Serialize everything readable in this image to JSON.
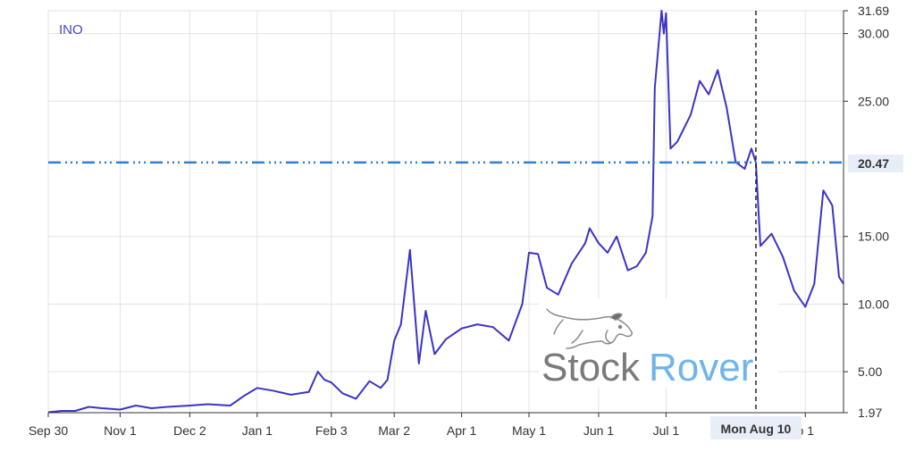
{
  "chart_data": {
    "type": "line",
    "ticker": "INO",
    "x_ticks": [
      "Sep 30",
      "Nov 1",
      "Dec 2",
      "Jan 1",
      "Feb 3",
      "Mar 2",
      "Apr 1",
      "May 1",
      "Jun 1",
      "Jul 1",
      "Sep 1"
    ],
    "x_tick_display": [
      "Sep 30",
      "Nov 1",
      "Dec 2",
      "Jan 1",
      "Feb 3",
      "Mar 2",
      "Apr 1",
      "May 1",
      "Jun 1",
      "Jul 1",
      "p 1"
    ],
    "y_ticks": [
      5.0,
      10.0,
      15.0,
      25.0,
      30.0
    ],
    "y_tick_labels": [
      "5.00",
      "10.00",
      "15.00",
      "25.00",
      "30.00"
    ],
    "y_max_label": "31.69",
    "y_min_label": "1.97",
    "ylim": [
      1.97,
      31.69
    ],
    "grid": true,
    "cursor": {
      "date_label": "Mon Aug 10",
      "value_label": "20.47",
      "value": 20.47
    },
    "series": [
      {
        "name": "INO",
        "values": [
          [
            "2019-09-30",
            2.0
          ],
          [
            "2019-10-06",
            2.1
          ],
          [
            "2019-10-12",
            2.1
          ],
          [
            "2019-10-18",
            2.4
          ],
          [
            "2019-10-24",
            2.3
          ],
          [
            "2019-11-01",
            2.2
          ],
          [
            "2019-11-08",
            2.5
          ],
          [
            "2019-11-15",
            2.3
          ],
          [
            "2019-11-22",
            2.4
          ],
          [
            "2019-12-02",
            2.5
          ],
          [
            "2019-12-10",
            2.6
          ],
          [
            "2019-12-20",
            2.5
          ],
          [
            "2019-12-26",
            3.2
          ],
          [
            "2020-01-01",
            3.8
          ],
          [
            "2020-01-08",
            3.6
          ],
          [
            "2020-01-16",
            3.3
          ],
          [
            "2020-01-24",
            3.5
          ],
          [
            "2020-01-28",
            5.0
          ],
          [
            "2020-01-31",
            4.4
          ],
          [
            "2020-02-03",
            4.2
          ],
          [
            "2020-02-08",
            3.4
          ],
          [
            "2020-02-14",
            3.0
          ],
          [
            "2020-02-20",
            4.3
          ],
          [
            "2020-02-25",
            3.8
          ],
          [
            "2020-02-28",
            4.4
          ],
          [
            "2020-03-02",
            7.3
          ],
          [
            "2020-03-05",
            8.5
          ],
          [
            "2020-03-09",
            14.0
          ],
          [
            "2020-03-13",
            5.6
          ],
          [
            "2020-03-16",
            9.5
          ],
          [
            "2020-03-20",
            6.3
          ],
          [
            "2020-03-25",
            7.4
          ],
          [
            "2020-04-01",
            8.2
          ],
          [
            "2020-04-08",
            8.5
          ],
          [
            "2020-04-15",
            8.3
          ],
          [
            "2020-04-22",
            7.3
          ],
          [
            "2020-04-28",
            10.0
          ],
          [
            "2020-05-01",
            13.8
          ],
          [
            "2020-05-05",
            13.7
          ],
          [
            "2020-05-09",
            11.2
          ],
          [
            "2020-05-14",
            10.7
          ],
          [
            "2020-05-20",
            13.0
          ],
          [
            "2020-05-26",
            14.5
          ],
          [
            "2020-05-28",
            15.6
          ],
          [
            "2020-06-01",
            14.5
          ],
          [
            "2020-06-05",
            13.8
          ],
          [
            "2020-06-09",
            15.0
          ],
          [
            "2020-06-14",
            12.5
          ],
          [
            "2020-06-18",
            12.8
          ],
          [
            "2020-06-22",
            13.8
          ],
          [
            "2020-06-25",
            16.5
          ],
          [
            "2020-06-26",
            26.0
          ],
          [
            "2020-06-29",
            31.69
          ],
          [
            "2020-06-30",
            30.0
          ],
          [
            "2020-07-01",
            31.5
          ],
          [
            "2020-07-03",
            21.5
          ],
          [
            "2020-07-06",
            22.0
          ],
          [
            "2020-07-09",
            23.0
          ],
          [
            "2020-07-12",
            24.0
          ],
          [
            "2020-07-16",
            26.5
          ],
          [
            "2020-07-20",
            25.5
          ],
          [
            "2020-07-24",
            27.3
          ],
          [
            "2020-07-28",
            24.5
          ],
          [
            "2020-08-01",
            20.5
          ],
          [
            "2020-08-05",
            20.0
          ],
          [
            "2020-08-08",
            21.5
          ],
          [
            "2020-08-10",
            20.47
          ],
          [
            "2020-08-12",
            14.3
          ],
          [
            "2020-08-17",
            15.2
          ],
          [
            "2020-08-22",
            13.5
          ],
          [
            "2020-08-27",
            11.0
          ],
          [
            "2020-09-01",
            9.8
          ],
          [
            "2020-09-05",
            11.5
          ],
          [
            "2020-09-09",
            18.4
          ],
          [
            "2020-09-13",
            17.3
          ],
          [
            "2020-09-16",
            12.0
          ],
          [
            "2020-09-18",
            11.5
          ]
        ]
      }
    ],
    "colors": {
      "line": "#3b33c8",
      "price_line": "#2f7fd0",
      "grid": "#e3e3e3"
    }
  },
  "watermark": {
    "brand_left": "Stock",
    "brand_right": "Rover"
  }
}
